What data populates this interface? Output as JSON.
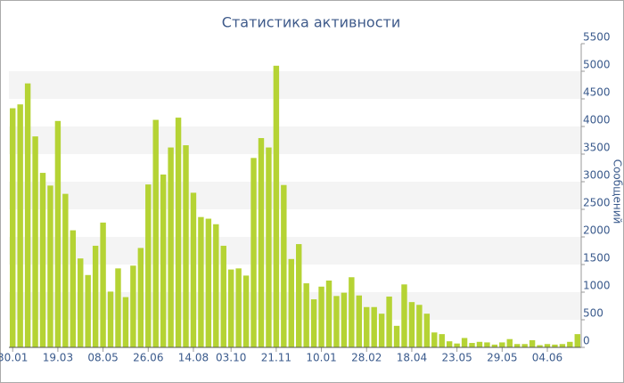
{
  "chart_data": {
    "type": "bar",
    "title": "Статистика активности",
    "y_label": "Сообщений",
    "categories": [
      "30.01",
      null,
      null,
      null,
      null,
      null,
      "19.03",
      null,
      null,
      null,
      null,
      null,
      "08.05",
      null,
      null,
      null,
      null,
      null,
      "26.06",
      null,
      null,
      null,
      null,
      null,
      "14.08",
      null,
      null,
      null,
      null,
      "03.10",
      null,
      null,
      null,
      null,
      null,
      "21.11",
      null,
      null,
      null,
      null,
      null,
      "10.01",
      null,
      null,
      null,
      null,
      null,
      "28.02",
      null,
      null,
      null,
      null,
      null,
      "18.04",
      null,
      null,
      null,
      null,
      null,
      "23.05",
      null,
      null,
      null,
      null,
      null,
      "29.05",
      null,
      null,
      null,
      null,
      null,
      "04.06",
      null,
      null,
      null,
      null
    ],
    "values": [
      4330,
      4400,
      4780,
      3820,
      3160,
      2930,
      4100,
      2780,
      2120,
      1610,
      1310,
      1840,
      2260,
      1010,
      1430,
      910,
      1480,
      1800,
      2950,
      4120,
      3130,
      3620,
      4160,
      3660,
      2800,
      2360,
      2330,
      2230,
      1840,
      1410,
      1430,
      1300,
      3430,
      3790,
      3620,
      5100,
      2940,
      1600,
      1870,
      1160,
      870,
      1100,
      1210,
      930,
      990,
      1270,
      940,
      730,
      730,
      610,
      920,
      390,
      1140,
      820,
      770,
      610,
      270,
      240,
      110,
      70,
      170,
      80,
      100,
      90,
      50,
      90,
      150,
      60,
      60,
      130,
      40,
      60,
      50,
      60,
      100,
      240
    ],
    "color": "#b5d334",
    "ylim": [
      0,
      5500
    ],
    "yticks": [
      0,
      500,
      1000,
      1500,
      2000,
      2500,
      3000,
      3500,
      4000,
      4500,
      5000,
      5500
    ],
    "grid": true
  }
}
